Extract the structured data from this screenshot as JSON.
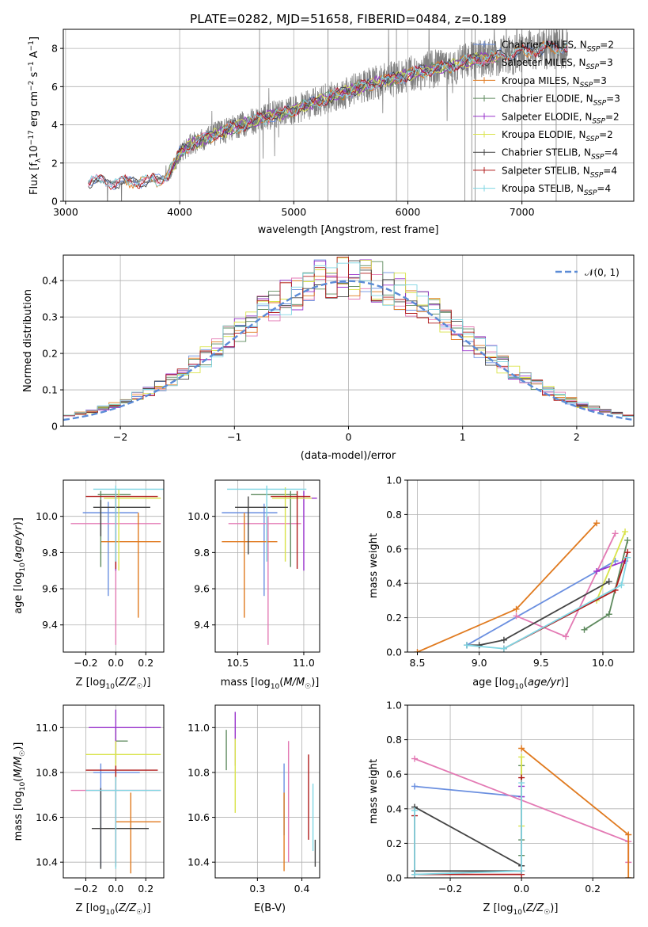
{
  "chart_data": [
    {
      "id": "spectrum",
      "type": "line",
      "title": "PLATE=0282, MJD=51658, FIBERID=0484, z=0.189",
      "xlabel": "wavelength [Angstrom, rest frame]",
      "ylabel": "Flux [f_λ 10^{-17} erg cm^{-2} s^{-1} A^{-1}]",
      "xlim": [
        2980,
        7980
      ],
      "ylim": [
        0,
        9
      ],
      "xticks": [
        3000,
        4000,
        5000,
        6000,
        7000
      ],
      "yticks": [
        0,
        2,
        4,
        6,
        8
      ],
      "grid": true,
      "legend_position": "upper right",
      "data_color": "#808080",
      "continuum": {
        "x": [
          3200,
          3300,
          3400,
          3500,
          3600,
          3700,
          3800,
          3900,
          4000,
          4100,
          4200,
          4300,
          4400,
          4500,
          4600,
          4700,
          4800,
          4900,
          5000,
          5200,
          5400,
          5600,
          5800,
          6000,
          6200,
          6400,
          6600,
          6800,
          7000,
          7200,
          7400
        ],
        "y": [
          1.0,
          1.05,
          1.0,
          1.0,
          1.05,
          1.05,
          1.1,
          1.4,
          2.5,
          3.0,
          3.2,
          3.5,
          3.7,
          3.9,
          4.1,
          4.3,
          4.5,
          4.6,
          4.8,
          5.2,
          5.6,
          6.0,
          6.3,
          6.6,
          6.9,
          7.1,
          7.4,
          7.6,
          7.8,
          8.0,
          8.1
        ]
      },
      "series": [
        {
          "name": "Chabrier MILES, N_SSP=2",
          "color": "#6a8fe0",
          "start": 3200,
          "end": 7400
        },
        {
          "name": "Salpeter MILES, N_SSP=3",
          "color": "#e37ab4",
          "start": 3200,
          "end": 7400
        },
        {
          "name": "Kroupa MILES, N_SSP=3",
          "color": "#e07a1f",
          "start": 3520,
          "end": 7400
        },
        {
          "name": "Chabrier ELODIE, N_SSP=3",
          "color": "#5e8a5e",
          "start": 3900,
          "end": 6800
        },
        {
          "name": "Salpeter ELODIE, N_SSP=2",
          "color": "#9933cc",
          "start": 3900,
          "end": 6800
        },
        {
          "name": "Kroupa ELODIE, N_SSP=2",
          "color": "#d9e34a",
          "start": 3900,
          "end": 6800
        },
        {
          "name": "Chabrier STELIB, N_SSP=4",
          "color": "#444444",
          "start": 3200,
          "end": 7400
        },
        {
          "name": "Salpeter STELIB, N_SSP=4",
          "color": "#b01c1c",
          "start": 3200,
          "end": 7400
        },
        {
          "name": "Kroupa STELIB, N_SSP=4",
          "color": "#7fd6e3",
          "start": 3200,
          "end": 7400
        }
      ]
    },
    {
      "id": "residuals",
      "type": "line",
      "xlabel": "(data-model)/error",
      "ylabel": "Normed distribution",
      "xlim": [
        -2.5,
        2.5
      ],
      "ylim": [
        0,
        0.47
      ],
      "xticks": [
        -2,
        -1,
        0,
        1,
        2
      ],
      "yticks": [
        0.0,
        0.1,
        0.2,
        0.3,
        0.4
      ],
      "grid": true,
      "legend_position": "upper right",
      "gaussian": {
        "name": "𝒩(0, 1)",
        "mean": 0,
        "sigma": 1,
        "color": "#5b8bd6"
      },
      "bin_width": 0.1,
      "series": [
        {
          "color": "#6a8fe0"
        },
        {
          "color": "#e37ab4"
        },
        {
          "color": "#e07a1f"
        },
        {
          "color": "#5e8a5e"
        },
        {
          "color": "#9933cc"
        },
        {
          "color": "#d9e34a"
        },
        {
          "color": "#444444"
        },
        {
          "color": "#b01c1c"
        },
        {
          "color": "#7fd6e3"
        }
      ]
    },
    {
      "id": "age_vs_z",
      "type": "scatter",
      "xlabel": "Z [log10(Z/Z☉)]",
      "ylabel": "age  [log10(age/yr)]",
      "xlim": [
        -0.35,
        0.32
      ],
      "ylim": [
        9.25,
        10.2
      ],
      "xticks": [
        -0.2,
        0.0,
        0.2
      ],
      "xticklabels": [
        "−0.2",
        "0.0",
        "0.2"
      ],
      "yticks": [
        9.4,
        9.6,
        9.8,
        10.0
      ],
      "yticklabels": [
        "9.4",
        "9.6",
        "9.8",
        "10.0"
      ],
      "grid": true,
      "points": [
        {
          "x": -0.05,
          "xerr": [
            0.17,
            0.2
          ],
          "y": 10.02,
          "yerr": [
            0.46,
            0.06
          ],
          "color": "#6a8fe0"
        },
        {
          "x": 0.0,
          "xerr": [
            0.3,
            0.3
          ],
          "y": 9.96,
          "yerr": [
            0.67,
            0.03
          ],
          "color": "#e37ab4"
        },
        {
          "x": 0.15,
          "xerr": [
            0.25,
            0.15
          ],
          "y": 9.86,
          "yerr": [
            0.42,
            0.16
          ],
          "color": "#e07a1f"
        },
        {
          "x": -0.1,
          "xerr": [
            0.02,
            0.2
          ],
          "y": 10.12,
          "yerr": [
            0.4,
            0.02
          ],
          "color": "#5e8a5e"
        },
        {
          "x": 0.0,
          "xerr": [
            0.0,
            0.0
          ],
          "y": 10.1,
          "yerr": [
            0.4,
            0.04
          ],
          "color": "#9933cc"
        },
        {
          "x": 0.02,
          "xerr": [
            0.1,
            0.28
          ],
          "y": 10.1,
          "yerr": [
            0.4,
            0.05
          ],
          "color": "#d9e34a"
        },
        {
          "x": -0.1,
          "xerr": [
            0.05,
            0.33
          ],
          "y": 10.05,
          "yerr": [
            0.16,
            0.04
          ],
          "color": "#444444"
        },
        {
          "x": 0.0,
          "xerr": [
            0.2,
            0.28
          ],
          "y": 10.11,
          "yerr": [
            0.4,
            0.03
          ],
          "color": "#b01c1c"
        },
        {
          "x": 0.0,
          "xerr": [
            0.15,
            0.35
          ],
          "y": 10.15,
          "yerr": [
            0.4,
            0.02
          ],
          "color": "#7fd6e3"
        }
      ]
    },
    {
      "id": "age_vs_mass",
      "type": "scatter",
      "xlabel": "mass [log10(M/M☉)]",
      "xlim": [
        10.33,
        11.12
      ],
      "ylim": [
        9.25,
        10.2
      ],
      "xticks": [
        10.5,
        11.0
      ],
      "xticklabels": [
        "10.5",
        "11.0"
      ],
      "yticks": [
        9.4,
        9.6,
        9.8,
        10.0
      ],
      "yticklabels": [
        "9.4",
        "9.6",
        "9.8",
        "10.0"
      ],
      "grid": true,
      "points": [
        {
          "x": 10.7,
          "xerr": [
            0.32,
            0.1
          ],
          "y": 10.02,
          "yerr": [
            0.46,
            0.05
          ],
          "color": "#6a8fe0"
        },
        {
          "x": 10.73,
          "xerr": [
            0.3,
            0.25
          ],
          "y": 9.96,
          "yerr": [
            0.67,
            0.04
          ],
          "color": "#e37ab4"
        },
        {
          "x": 10.55,
          "xerr": [
            0.17,
            0.25
          ],
          "y": 9.86,
          "yerr": [
            0.42,
            0.16
          ],
          "color": "#e07a1f"
        },
        {
          "x": 10.9,
          "xerr": [
            0.3,
            0.05
          ],
          "y": 10.12,
          "yerr": [
            0.4,
            0.02
          ],
          "color": "#5e8a5e"
        },
        {
          "x": 11.0,
          "xerr": [
            0.1,
            0.1
          ],
          "y": 10.1,
          "yerr": [
            0.4,
            0.04
          ],
          "color": "#9933cc"
        },
        {
          "x": 10.86,
          "xerr": [
            0.1,
            0.2
          ],
          "y": 10.1,
          "yerr": [
            0.35,
            0.06
          ],
          "color": "#d9e34a"
        },
        {
          "x": 10.58,
          "xerr": [
            0.1,
            0.3
          ],
          "y": 10.05,
          "yerr": [
            0.26,
            0.06
          ],
          "color": "#444444"
        },
        {
          "x": 10.95,
          "xerr": [
            0.2,
            0.1
          ],
          "y": 10.11,
          "yerr": [
            0.4,
            0.03
          ],
          "color": "#b01c1c"
        },
        {
          "x": 10.72,
          "xerr": [
            0.3,
            0.3
          ],
          "y": 10.15,
          "yerr": [
            0.4,
            0.02
          ],
          "color": "#7fd6e3"
        }
      ]
    },
    {
      "id": "weight_vs_age",
      "type": "line",
      "xlabel": "age  [log10(age/yr)]",
      "ylabel": "mass weight",
      "xlim": [
        8.42,
        10.25
      ],
      "ylim": [
        0,
        1
      ],
      "xticks": [
        8.5,
        9.0,
        9.5,
        10.0
      ],
      "xticklabels": [
        "8.5",
        "9.0",
        "9.5",
        "10.0"
      ],
      "yticks": [
        0.0,
        0.2,
        0.4,
        0.6,
        0.8,
        1.0
      ],
      "yticklabels": [
        "0.0",
        "0.2",
        "0.4",
        "0.6",
        "0.8",
        "1.0"
      ],
      "grid": true,
      "series": [
        {
          "color": "#6a8fe0",
          "x": [
            8.9,
            10.1
          ],
          "y": [
            0.04,
            0.53
          ]
        },
        {
          "color": "#e37ab4",
          "x": [
            9.3,
            9.7,
            10.1
          ],
          "y": [
            0.21,
            0.09,
            0.69
          ]
        },
        {
          "color": "#e07a1f",
          "x": [
            8.5,
            9.3,
            9.95
          ],
          "y": [
            0.0,
            0.25,
            0.75
          ]
        },
        {
          "color": "#5e8a5e",
          "x": [
            9.85,
            10.05,
            10.2
          ],
          "y": [
            0.13,
            0.22,
            0.65
          ]
        },
        {
          "color": "#9933cc",
          "x": [
            9.95,
            10.18
          ],
          "y": [
            0.47,
            0.53
          ]
        },
        {
          "color": "#d9e34a",
          "x": [
            9.95,
            10.18
          ],
          "y": [
            0.3,
            0.7
          ]
        },
        {
          "color": "#444444",
          "x": [
            8.9,
            9.0,
            9.2,
            10.05
          ],
          "y": [
            0.04,
            0.04,
            0.07,
            0.41
          ]
        },
        {
          "color": "#b01c1c",
          "x": [
            9.2,
            10.1,
            10.2
          ],
          "y": [
            0.02,
            0.36,
            0.58
          ]
        },
        {
          "color": "#7fd6e3",
          "x": [
            8.9,
            9.2,
            10.15,
            10.2
          ],
          "y": [
            0.04,
            0.02,
            0.39,
            0.55
          ]
        }
      ]
    },
    {
      "id": "mass_vs_z",
      "type": "scatter",
      "xlabel": "Z [log10(Z/Z☉)]",
      "ylabel": "mass [log10(M/M☉)]",
      "xlim": [
        -0.35,
        0.32
      ],
      "ylim": [
        10.33,
        11.1
      ],
      "xticks": [
        -0.2,
        0.0,
        0.2
      ],
      "xticklabels": [
        "−0.2",
        "0.0",
        "0.2"
      ],
      "yticks": [
        10.4,
        10.6,
        10.8,
        11.0
      ],
      "yticklabels": [
        "10.4",
        "10.6",
        "10.8",
        "11.0"
      ],
      "grid": true,
      "points": [
        {
          "x": -0.1,
          "xerr": [
            0.05,
            0.26
          ],
          "y": 10.8,
          "yerr": [
            0.42,
            0.04
          ],
          "color": "#6a8fe0"
        },
        {
          "x": 0.0,
          "xerr": [
            0.3,
            0.3
          ],
          "y": 10.72,
          "yerr": [
            0.32,
            0.23
          ],
          "color": "#e37ab4"
        },
        {
          "x": 0.1,
          "xerr": [
            0.1,
            0.2
          ],
          "y": 10.58,
          "yerr": [
            0.23,
            0.13
          ],
          "color": "#e07a1f"
        },
        {
          "x": 0.0,
          "xerr": [
            0.0,
            0.08
          ],
          "y": 10.94,
          "yerr": [
            0.1,
            0.06
          ],
          "color": "#5e8a5e"
        },
        {
          "x": 0.0,
          "xerr": [
            0.18,
            0.3
          ],
          "y": 11.0,
          "yerr": [
            0.1,
            0.08
          ],
          "color": "#9933cc"
        },
        {
          "x": 0.0,
          "xerr": [
            0.2,
            0.3
          ],
          "y": 10.88,
          "yerr": [
            0.12,
            0.06
          ],
          "color": "#d9e34a"
        },
        {
          "x": -0.1,
          "xerr": [
            0.06,
            0.32
          ],
          "y": 10.55,
          "yerr": [
            0.18,
            0.18
          ],
          "color": "#444444"
        },
        {
          "x": 0.0,
          "xerr": [
            0.2,
            0.28
          ],
          "y": 10.81,
          "yerr": [
            0.43,
            0.02
          ],
          "color": "#b01c1c"
        },
        {
          "x": 0.0,
          "xerr": [
            0.2,
            0.3
          ],
          "y": 10.72,
          "yerr": [
            0.35,
            0.06
          ],
          "color": "#7fd6e3"
        }
      ]
    },
    {
      "id": "mass_vs_ebv",
      "type": "scatter",
      "xlabel": "E(B-V)",
      "xlim": [
        0.205,
        0.44
      ],
      "ylim": [
        10.33,
        11.1
      ],
      "xticks": [
        0.3,
        0.4
      ],
      "xticklabels": [
        "0.3",
        "0.4"
      ],
      "yticks": [
        10.4,
        10.6,
        10.8,
        11.0
      ],
      "yticklabels": [
        "10.4",
        "10.6",
        "10.8",
        "11.0"
      ],
      "grid": true,
      "points": [
        {
          "x": 0.36,
          "y": 10.72,
          "yerr": [
            0.2,
            0.12
          ],
          "color": "#6a8fe0"
        },
        {
          "x": 0.37,
          "y": 10.72,
          "yerr": [
            0.32,
            0.22
          ],
          "color": "#e37ab4"
        },
        {
          "x": 0.36,
          "y": 10.55,
          "yerr": [
            0.19,
            0.16
          ],
          "color": "#e07a1f"
        },
        {
          "x": 0.23,
          "y": 10.9,
          "yerr": [
            0.09,
            0.09
          ],
          "color": "#5e8a5e"
        },
        {
          "x": 0.25,
          "y": 10.95,
          "yerr": [
            0.12,
            0.12
          ],
          "color": "#9933cc"
        },
        {
          "x": 0.25,
          "y": 10.75,
          "yerr": [
            0.13,
            0.2
          ],
          "color": "#d9e34a"
        },
        {
          "x": 0.43,
          "y": 10.45,
          "yerr": [
            0.07,
            0.05
          ],
          "color": "#444444"
        },
        {
          "x": 0.415,
          "y": 10.7,
          "yerr": [
            0.2,
            0.18
          ],
          "color": "#b01c1c"
        },
        {
          "x": 0.425,
          "y": 10.65,
          "yerr": [
            0.2,
            0.1
          ],
          "color": "#7fd6e3"
        }
      ]
    },
    {
      "id": "weight_vs_z",
      "type": "line",
      "xlabel": "Z [log10(Z/Z☉)]",
      "ylabel": "mass weight",
      "xlim": [
        -0.32,
        0.315
      ],
      "ylim": [
        0,
        1
      ],
      "xticks": [
        -0.2,
        0.0,
        0.2
      ],
      "xticklabels": [
        "−0.2",
        "0.0",
        "0.2"
      ],
      "yticks": [
        0.0,
        0.2,
        0.4,
        0.6,
        0.8,
        1.0
      ],
      "yticklabels": [
        "0.0",
        "0.2",
        "0.4",
        "0.6",
        "0.8",
        "1.0"
      ],
      "grid": true,
      "series": [
        {
          "color": "#6a8fe0",
          "x": [
            -0.3,
            0.0,
            0.0
          ],
          "y": [
            0.53,
            0.47,
            0.04
          ]
        },
        {
          "color": "#e37ab4",
          "x": [
            -0.3,
            0.3,
            0.3
          ],
          "y": [
            0.69,
            0.21,
            0.09
          ]
        },
        {
          "color": "#e07a1f",
          "x": [
            0.0,
            0.3,
            0.3
          ],
          "y": [
            0.75,
            0.25,
            0.0
          ]
        },
        {
          "color": "#5e8a5e",
          "x": [
            0.0,
            0.0,
            0.0
          ],
          "y": [
            0.65,
            0.22,
            0.13
          ]
        },
        {
          "color": "#9933cc",
          "x": [
            0.0,
            0.0
          ],
          "y": [
            0.53,
            0.47
          ]
        },
        {
          "color": "#d9e34a",
          "x": [
            0.0,
            0.0
          ],
          "y": [
            0.7,
            0.3
          ]
        },
        {
          "color": "#444444",
          "x": [
            -0.3,
            0.0,
            0.0,
            -0.3
          ],
          "y": [
            0.41,
            0.07,
            0.04,
            0.04
          ]
        },
        {
          "color": "#b01c1c",
          "x": [
            -0.3,
            -0.3,
            0.0,
            0.0
          ],
          "y": [
            0.36,
            0.02,
            0.02,
            0.58
          ]
        },
        {
          "color": "#7fd6e3",
          "x": [
            -0.3,
            -0.3,
            0.0,
            0.0
          ],
          "y": [
            0.39,
            0.02,
            0.04,
            0.55
          ]
        }
      ]
    }
  ]
}
